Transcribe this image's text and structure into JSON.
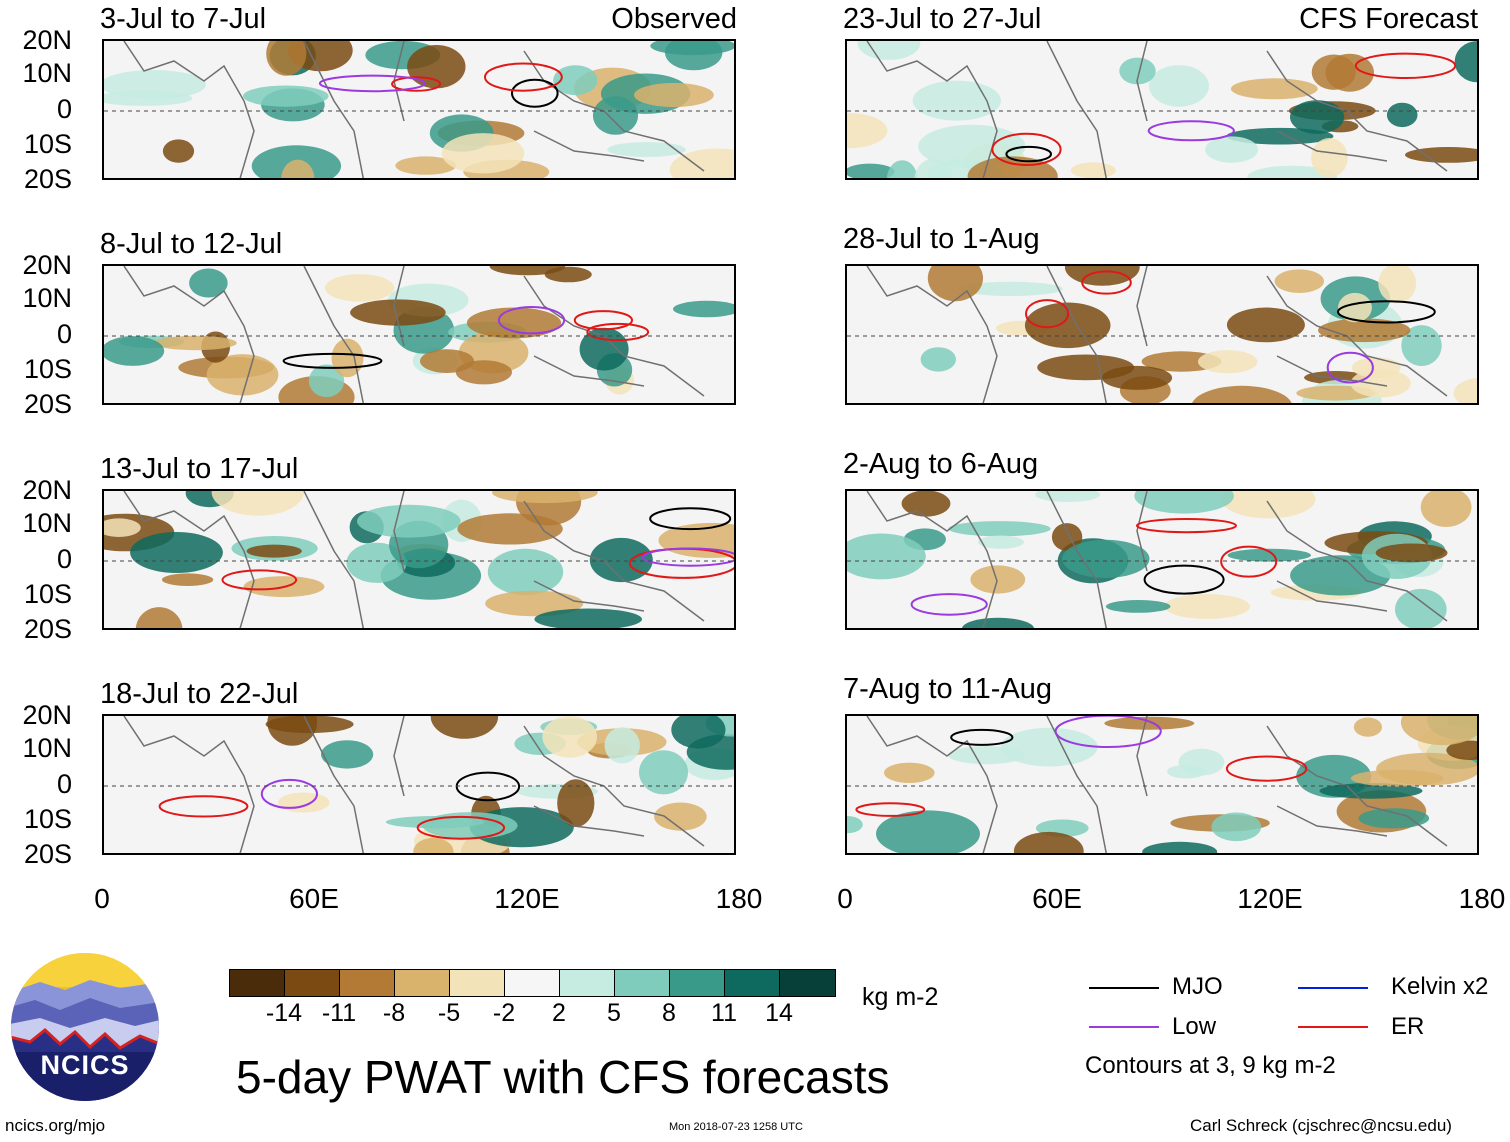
{
  "panels": {
    "left": [
      {
        "title": "3-Jul to 7-Jul",
        "label": "Observed"
      },
      {
        "title": "8-Jul to 12-Jul",
        "label": ""
      },
      {
        "title": "13-Jul to 17-Jul",
        "label": ""
      },
      {
        "title": "18-Jul to 22-Jul",
        "label": ""
      }
    ],
    "right": [
      {
        "title": "23-Jul to 27-Jul",
        "label": "CFS Forecast"
      },
      {
        "title": "28-Jul to 1-Aug",
        "label": ""
      },
      {
        "title": "2-Aug to 6-Aug",
        "label": ""
      },
      {
        "title": "7-Aug to 11-Aug",
        "label": ""
      }
    ]
  },
  "axes": {
    "y_labels": [
      "20N",
      "10N",
      "0",
      "10S",
      "20S"
    ],
    "x_labels": [
      "0",
      "60E",
      "120E",
      "180"
    ]
  },
  "colorbar": {
    "unit": "kg m-2",
    "ticks": [
      "-14",
      "-11",
      "-8",
      "-5",
      "-2",
      "2",
      "5",
      "8",
      "11",
      "14"
    ],
    "colors": [
      "#4a2c0a",
      "#7a4a12",
      "#b27a35",
      "#d9b26c",
      "#f3e3b9",
      "#f6f6f6",
      "#c6ebe1",
      "#7fccbc",
      "#3a9a8a",
      "#0e6a5e",
      "#073f39"
    ]
  },
  "legend": {
    "items": [
      {
        "name": "MJO",
        "color": "#000000"
      },
      {
        "name": "Kelvin x2",
        "color": "#0022dd"
      },
      {
        "name": "Low",
        "color": "#9a3ae0"
      },
      {
        "name": "ER",
        "color": "#e01818"
      }
    ],
    "contour_note": "Contours at 3, 9 kg m-2"
  },
  "footer": {
    "title": "5-day PWAT with CFS forecasts",
    "url": "ncics.org/mjo",
    "timestamp": "Mon 2018-07-23 1258 UTC",
    "credit": "Carl Schreck (cjschrec@ncsu.edu)",
    "logo_text": "NCICS"
  }
}
